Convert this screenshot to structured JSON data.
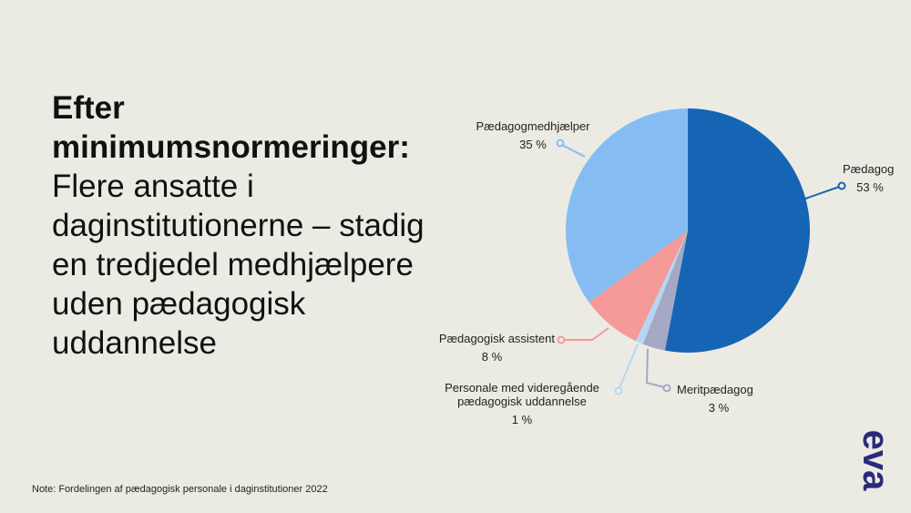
{
  "headline": {
    "bold": "Efter minimumsnormeringer:",
    "regular": "Flere ansatte i daginstitutionerne – stadig en tredjedel medhjælpere uden pædagogisk uddannelse"
  },
  "note": "Note: Fordelingen af pædagogisk personale i daginstitutioner 2022",
  "logo": {
    "text": "eva",
    "icon": "eva-logo",
    "color": "#2b2a7a"
  },
  "chart_data": {
    "type": "pie",
    "slices": [
      {
        "name": "Pædagog",
        "value": 53,
        "label": "53 %",
        "color": "#1565b4"
      },
      {
        "name": "Meritpædagog",
        "value": 3,
        "label": "3 %",
        "color": "#a5a8c4"
      },
      {
        "name": "Personale med videregående pædagogisk uddannelse",
        "label_lines": [
          "Personale med videregående",
          "pædagogisk uddannelse"
        ],
        "value": 1,
        "label": "1 %",
        "color": "#b4d8f4"
      },
      {
        "name": "Pædagogisk assistent",
        "value": 8,
        "label": "8 %",
        "color": "#f59999"
      },
      {
        "name": "Pædagogmedhjælper",
        "value": 35,
        "label": "35 %",
        "color": "#85bdf2"
      }
    ],
    "start_angle": "12 o'clock",
    "direction": "clockwise"
  }
}
